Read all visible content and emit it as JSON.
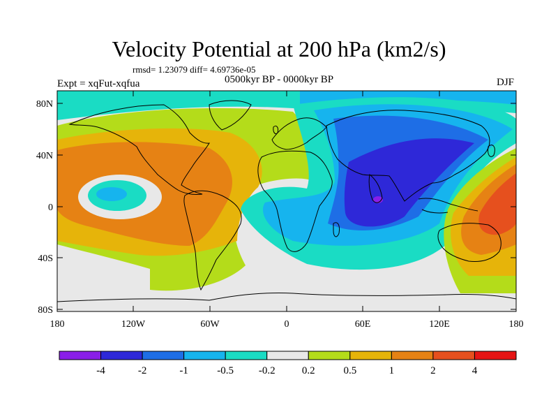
{
  "title": "Velocity Potential at 200 hPa (km2/s)",
  "stats": "rmsd= 1.23079 diff= 4.69736e-05",
  "experiment": "Expt = xqFut-xqfua",
  "period": "0500kyr BP - 0000kyr BP",
  "season": "DJF",
  "lat_labels": [
    "80N",
    "40N",
    "0",
    "40S",
    "80S"
  ],
  "lon_labels": [
    "180",
    "120W",
    "60W",
    "0",
    "60E",
    "120E",
    "180"
  ],
  "colorbar": {
    "labels": [
      "-4",
      "-2",
      "-1",
      "-0.5",
      "-0.2",
      "0.2",
      "0.5",
      "1",
      "2",
      "4"
    ],
    "colors": [
      "#8a1ee8",
      "#2e28d8",
      "#1e6ee6",
      "#16b4ee",
      "#1adcc4",
      "#e8e8e8",
      "#b4dc1a",
      "#e6b40a",
      "#e68214",
      "#e6501e",
      "#e61414"
    ]
  }
}
